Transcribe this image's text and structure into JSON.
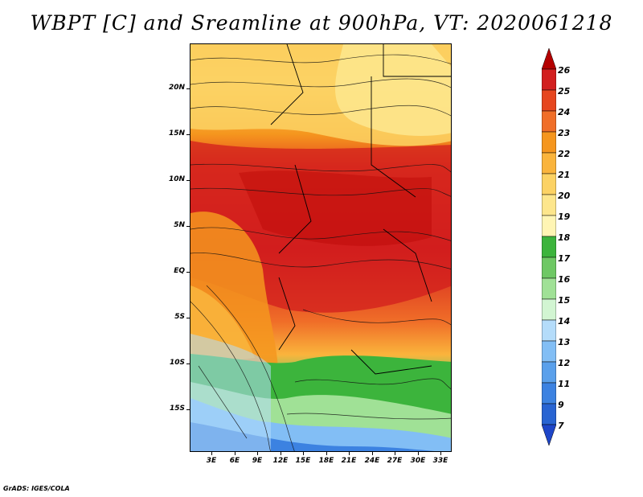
{
  "title": "WBPT [C] and Sreamline at 900hPa, VT: 2020061218",
  "footer": "GrADS: IGES/COLA",
  "map": {
    "lat_ticks": [
      "20N",
      "15N",
      "10N",
      "5N",
      "EQ",
      "5S",
      "10S",
      "15S"
    ],
    "lon_ticks": [
      "3E",
      "6E",
      "9E",
      "12E",
      "15E",
      "18E",
      "21E",
      "24E",
      "27E",
      "30E",
      "33E"
    ]
  },
  "colorbar": {
    "labels": [
      "26",
      "25",
      "24",
      "23",
      "22",
      "21",
      "20",
      "19",
      "18",
      "17",
      "16",
      "15",
      "14",
      "13",
      "12",
      "11",
      "9",
      "7"
    ],
    "colors": [
      "#b40000",
      "#d21e1e",
      "#e6461e",
      "#f06e28",
      "#f5961e",
      "#fab43c",
      "#fcd264",
      "#fde68c",
      "#fff5b4",
      "#3cb43c",
      "#6ec864",
      "#a0e196",
      "#d2f5d2",
      "#b4dcfa",
      "#82bef5",
      "#5aa0eb",
      "#3c82e1",
      "#2864d2",
      "#1e46c8"
    ]
  }
}
